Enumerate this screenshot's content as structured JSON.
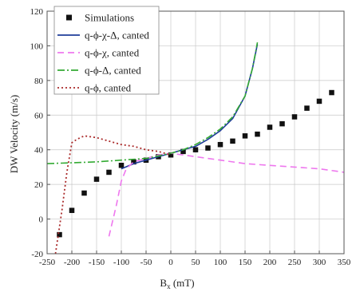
{
  "chart_data": {
    "type": "line",
    "title": "",
    "xlabel": "B",
    "xlabel_sub": "x",
    "xlabel_unit": " (mT)",
    "ylabel": "DW Velocity (m/s)",
    "xlim": [
      -250,
      350
    ],
    "ylim": [
      -20,
      120
    ],
    "xticks": [
      -250,
      -200,
      -150,
      -100,
      -50,
      0,
      50,
      100,
      150,
      200,
      250,
      300,
      350
    ],
    "yticks": [
      -20,
      0,
      20,
      40,
      60,
      80,
      100,
      120
    ],
    "legend_position": "top-left",
    "series": [
      {
        "name": "Simulations",
        "kind": "markers",
        "color": "#111111",
        "x": [
          -225,
          -200,
          -175,
          -150,
          -125,
          -100,
          -75,
          -50,
          -25,
          0,
          25,
          50,
          75,
          100,
          125,
          150,
          175,
          200,
          225,
          250,
          275,
          300,
          325
        ],
        "y": [
          -9,
          5,
          15,
          23,
          27,
          31,
          33,
          34,
          36,
          37,
          39,
          40,
          41,
          43,
          45,
          48,
          49,
          53,
          55,
          59,
          64,
          68,
          73
        ]
      },
      {
        "name": "q-ϕ-χ-Δ, canted",
        "kind": "line",
        "color": "#1f3d99",
        "dash": "",
        "x": [
          -100,
          -75,
          -50,
          -25,
          0,
          25,
          50,
          75,
          100,
          125,
          150,
          165,
          175
        ],
        "y": [
          29,
          32,
          34,
          36,
          38,
          40,
          42,
          46,
          51,
          58,
          71,
          87,
          101
        ]
      },
      {
        "name": "q-ϕ-χ, canted",
        "kind": "line",
        "color": "#ee77ee",
        "dash": "8,5",
        "x": [
          -125,
          -110,
          -100,
          -90,
          -75,
          -50,
          -25,
          0,
          50,
          100,
          150,
          200,
          250,
          300,
          350
        ],
        "y": [
          -10,
          8,
          22,
          29,
          33,
          35,
          37,
          38,
          36,
          34,
          32,
          31,
          30,
          29,
          27
        ]
      },
      {
        "name": "q-ϕ-Δ, canted",
        "kind": "line",
        "color": "#33aa33",
        "dash": "9,3,2,3",
        "x": [
          -250,
          -200,
          -150,
          -100,
          -50,
          0,
          25,
          50,
          75,
          100,
          125,
          150,
          165,
          175
        ],
        "y": [
          32,
          32.5,
          33,
          34,
          35,
          38,
          40,
          43,
          47,
          52,
          59,
          71,
          87,
          102
        ]
      },
      {
        "name": "q-ϕ, canted",
        "kind": "line",
        "color": "#aa2a2a",
        "dash": "2,3",
        "x": [
          -233,
          -220,
          -210,
          -200,
          -190,
          -175,
          -150,
          -125,
          -100,
          -75,
          -50,
          -25,
          0
        ],
        "y": [
          -20,
          5,
          27,
          44,
          46,
          48,
          47,
          45,
          43,
          42,
          40,
          39,
          37
        ]
      }
    ]
  }
}
